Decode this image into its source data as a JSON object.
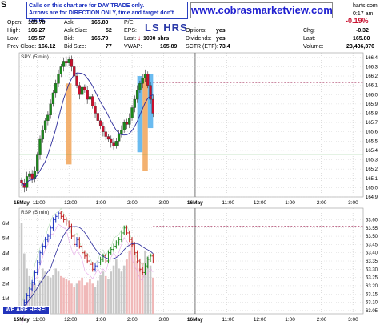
{
  "header": {
    "symbol": "S",
    "site": "www.cobrasmarketview.com",
    "site_suffix": "harts.com",
    "note_line1": "Calls on this chart are for DAY TRADE only.",
    "note_line2": "Arrows are for DIRECTION ONLY, time and target don't count.",
    "time": "0:17 am",
    "pct_change": "-0.19%",
    "logo_text": "LS HRS",
    "quote": {
      "open_label": "Open:",
      "open": "165.78",
      "high_label": "High:",
      "high": "166.27",
      "low_label": "Low:",
      "low": "165.57",
      "prevclose_label": "Prev Close:",
      "prevclose": "166.12",
      "ask_label": "Ask:",
      "ask": "165.80",
      "asksize_label": "Ask Size:",
      "asksize": "52",
      "bid_label": "Bid:",
      "bid": "165.79",
      "bidsize_label": "Bid Size:",
      "bidsize": "77",
      "pe_label": "P/E:",
      "pe": "",
      "eps_label": "EPS:",
      "eps": "",
      "last_label": "Last:",
      "last_size": "1000 shrs",
      "vwap_label": "VWAP:",
      "vwap": "165.89",
      "options_label": "Options:",
      "options": "yes",
      "dividends_label": "Dividends:",
      "dividends": "yes",
      "sctr_label": "SCTR (ETF):",
      "sctr": "73.4",
      "chg_label": "Chg:",
      "chg": "-0.32",
      "last2_label": "Last:",
      "last2": "165.80",
      "volume_label": "Volume:",
      "volume": "23,436,376"
    }
  },
  "colors": {
    "up": "#1a8a1a",
    "down": "#c8102e",
    "ma": "#2a2a9a",
    "orange_box": "#f2a860",
    "blue_box": "#5ab4ee",
    "support": "#2e9a2e",
    "resistance": "#9a1a4a",
    "rsp_red": "#c02020"
  },
  "chart_data": [
    {
      "type": "candlestick",
      "title": "SPY (5 min)",
      "ylim": [
        164.9,
        166.45
      ],
      "y_ticks": [
        "166.4",
        "166.3",
        "166.2",
        "166.1",
        "166.0",
        "165.9",
        "165.8",
        "165.7",
        "165.6",
        "165.5",
        "165.4",
        "165.3",
        "165.2",
        "165.1",
        "165.0",
        "164.9"
      ],
      "y_tick_values": [
        166.4,
        166.3,
        166.2,
        166.1,
        166.0,
        165.9,
        165.8,
        165.7,
        165.6,
        165.5,
        165.4,
        165.3,
        165.2,
        165.1,
        165.0,
        164.9
      ],
      "x_labels": [
        "15May",
        "11:00",
        "12:00",
        "1:00",
        "2:00",
        "3:00",
        "16May",
        "11:00",
        "12:00",
        "1:00",
        "2:00",
        "3:00"
      ],
      "x_label_idx": [
        0,
        6,
        18,
        30,
        42,
        54,
        66,
        78,
        90,
        102,
        114,
        126
      ],
      "support_level": 165.36,
      "resistance_level": 166.13,
      "series": [
        {
          "name": "close",
          "values": [
            165.05,
            165.0,
            165.12,
            165.15,
            165.1,
            165.18,
            165.35,
            165.52,
            165.62,
            165.72,
            165.78,
            165.9,
            166.02,
            166.12,
            166.22,
            166.3,
            166.36,
            166.34,
            166.38,
            166.3,
            166.2,
            166.1,
            166.0,
            166.08,
            166.05,
            165.95,
            165.98,
            165.88,
            165.8,
            165.72,
            165.66,
            165.6,
            165.55,
            165.52,
            165.48,
            165.45,
            165.5,
            165.58,
            165.62,
            165.7,
            165.68,
            165.75,
            165.86,
            165.95,
            166.05,
            166.12,
            166.18,
            166.22,
            166.1,
            165.95,
            165.8
          ]
        }
      ],
      "bar_start_idx": 0,
      "last_bar_idx": 50,
      "orange_boxes": [
        {
          "x_from": 17,
          "x_to": 19,
          "y_from": 165.25,
          "y_to": 166.12
        },
        {
          "x_from": 46,
          "x_to": 48,
          "y_from": 165.18,
          "y_to": 166.18
        }
      ],
      "blue_boxes": [
        {
          "x_from": 44,
          "x_to": 46,
          "y_from": 165.38,
          "y_to": 166.2
        },
        {
          "x_from": 48,
          "x_to": 50,
          "y_from": 165.64,
          "y_to": 166.22
        }
      ]
    },
    {
      "type": "line",
      "title": "RSP (5 min)",
      "ylim": [
        63.03,
        63.67
      ],
      "y_ticks": [
        "63.60",
        "63.55",
        "63.50",
        "63.45",
        "63.40",
        "63.35",
        "63.30",
        "63.25",
        "63.20",
        "63.15",
        "63.10",
        "63.05"
      ],
      "y_tick_values": [
        63.6,
        63.55,
        63.5,
        63.45,
        63.4,
        63.35,
        63.3,
        63.25,
        63.2,
        63.15,
        63.1,
        63.05
      ],
      "volume_ticks": [
        "6M",
        "5M",
        "4M",
        "3M",
        "2M",
        "1M"
      ],
      "volume_tick_values": [
        6,
        5,
        4,
        3,
        2,
        1
      ],
      "volume_max": 7,
      "x_labels": [
        "15May",
        "11:00",
        "12:00",
        "1:00",
        "2:00",
        "3:00",
        "16May",
        "11:00",
        "12:00",
        "1:00",
        "2:00",
        "3:00"
      ],
      "x_label_idx": [
        0,
        6,
        18,
        30,
        42,
        54,
        66,
        78,
        90,
        102,
        114,
        126
      ],
      "dashed_level": 63.56,
      "series": [
        {
          "name": "close",
          "values": [
            63.05,
            63.1,
            63.14,
            63.18,
            63.22,
            63.28,
            63.34,
            63.4,
            63.44,
            63.48,
            63.5,
            63.55,
            63.6,
            63.62,
            63.64,
            63.62,
            63.6,
            63.58,
            63.56,
            63.5,
            63.45,
            63.48,
            63.44,
            63.4,
            63.38,
            63.35,
            63.33,
            63.3,
            63.32,
            63.34,
            63.36,
            63.38,
            63.35,
            63.4,
            63.42,
            63.44,
            63.46,
            63.48,
            63.52,
            63.55,
            63.52,
            63.48,
            63.45,
            63.4,
            63.35,
            63.3,
            63.28,
            63.32,
            63.36,
            63.38,
            63.35
          ]
        },
        {
          "name": "volume",
          "values": [
            6,
            4,
            3,
            2.5,
            2,
            2,
            1.8,
            2.2,
            3,
            2.8,
            2.5,
            2.4,
            2.6,
            3,
            2.8,
            2.5,
            2.4,
            2.3,
            2.2,
            2.0,
            1.8,
            2.0,
            2.2,
            2.4,
            1.9,
            2.1,
            2.3,
            2.0,
            1.8,
            2.2,
            2.6,
            2.8,
            2.5,
            2.3,
            2.8,
            3.2,
            3.6,
            3.0,
            2.8,
            3.2,
            3.6,
            4.2,
            4.8,
            4.0,
            3.5,
            3.0,
            3.4,
            4.2,
            3.8,
            3.2,
            2.4
          ]
        }
      ]
    }
  ]
}
